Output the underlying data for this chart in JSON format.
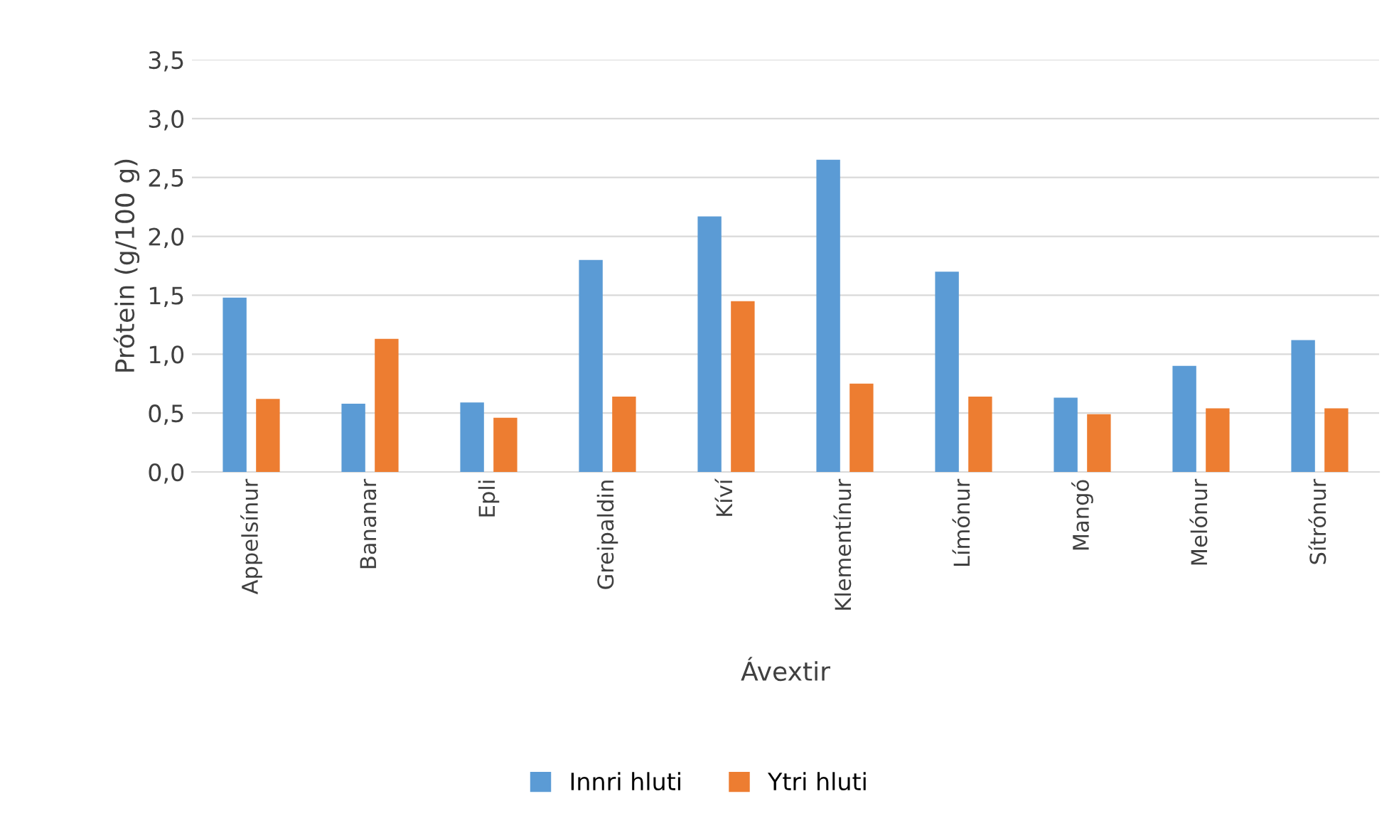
{
  "chart_data": {
    "type": "bar",
    "xlabel": "Ávextir",
    "ylabel": "Prótein (g/100 g)",
    "categories": [
      "Appelsínur",
      "Bananar",
      "Epli",
      "Greipaldin",
      "Kíví",
      "Klementínur",
      "Límónur",
      "Mangó",
      "Melónur",
      "Sítrónur"
    ],
    "series": [
      {
        "name": "Innri hluti",
        "color": "#5b9bd5",
        "values": [
          1.48,
          0.58,
          0.59,
          1.8,
          2.17,
          2.65,
          1.7,
          0.63,
          0.9,
          1.12
        ]
      },
      {
        "name": "Ytri hluti",
        "color": "#ed7d31",
        "values": [
          0.62,
          1.13,
          0.46,
          0.64,
          1.45,
          0.75,
          0.64,
          0.49,
          0.54,
          0.54
        ]
      }
    ],
    "ylim": [
      0,
      3.5
    ],
    "yticks": [
      {
        "value": 0,
        "label": "0,0"
      },
      {
        "value": 0.5,
        "label": "0,5"
      },
      {
        "value": 1,
        "label": "1,0"
      },
      {
        "value": 1.5,
        "label": "1,5"
      },
      {
        "value": 2,
        "label": "2,0"
      },
      {
        "value": 2.5,
        "label": "2,5"
      },
      {
        "value": 3,
        "label": "3,0"
      },
      {
        "value": 3.5,
        "label": "3,5"
      }
    ],
    "grid": "y",
    "legend": "bottom"
  }
}
